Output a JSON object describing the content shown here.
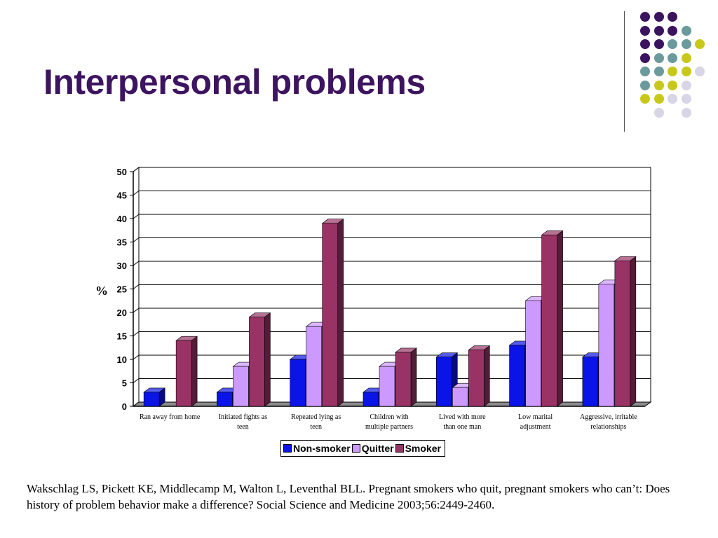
{
  "slide": {
    "title": "Interpersonal problems",
    "citation": "Wakschlag LS, Pickett KE, Middlecamp M, Walton L, Leventhal BLL.  Pregnant smokers who quit, pregnant smokers who can’t:  Does history of problem behavior make a difference?  Social Science and Medicine 2003;56:2449-2460."
  },
  "decor": {
    "dot_colors": {
      "purple": "#3b135e",
      "teal": "#6a9a9c",
      "yellow": "#c8c81a",
      "lavender": "#d7d5e6"
    },
    "dot_rows": [
      [
        "",
        "",
        "",
        "purple",
        "purple",
        "purple",
        ""
      ],
      [
        "",
        "",
        "",
        "purple",
        "purple",
        "purple",
        "teal"
      ],
      [
        "",
        "",
        "",
        "purple",
        "purple",
        "teal",
        "teal",
        "yellow"
      ],
      [
        "",
        "",
        "",
        "purple",
        "teal",
        "teal",
        "yellow"
      ],
      [
        "",
        "",
        "",
        "teal",
        "teal",
        "yellow",
        "yellow",
        "lavender"
      ],
      [
        "",
        "",
        "",
        "teal",
        "yellow",
        "yellow",
        "lavender"
      ],
      [
        "",
        "",
        "",
        "yellow",
        "yellow",
        "lavender",
        "lavender"
      ],
      [
        "",
        "",
        "",
        "",
        "lavender",
        "",
        "lavender"
      ]
    ]
  },
  "chart_data": {
    "type": "bar",
    "title": "",
    "xlabel": "",
    "ylabel": "%",
    "ylim": [
      0,
      50
    ],
    "yticks": [
      0,
      5,
      10,
      15,
      20,
      25,
      30,
      35,
      40,
      45,
      50
    ],
    "grid": true,
    "legend_position": "bottom",
    "categories": [
      [
        "Ran away from home"
      ],
      [
        "Initiated fights as",
        "teen"
      ],
      [
        "Repeated lying as",
        "teen"
      ],
      [
        "Children with",
        "multiple partners"
      ],
      [
        "Lived with more",
        "than one man"
      ],
      [
        "Low marital",
        "adjustment"
      ],
      [
        "Aggressive, irritable",
        "relationships"
      ]
    ],
    "series": [
      {
        "name": "Non-smoker",
        "color": "#0a14e6",
        "values": [
          3,
          3,
          10,
          3,
          10.5,
          13,
          10.5
        ]
      },
      {
        "name": "Quitter",
        "color": "#cc99ff",
        "values": [
          0,
          8.5,
          17,
          8.5,
          4,
          22.5,
          26
        ]
      },
      {
        "name": "Smoker",
        "color": "#993366",
        "values": [
          14,
          19,
          39,
          11.5,
          12,
          36.5,
          31
        ]
      }
    ]
  }
}
